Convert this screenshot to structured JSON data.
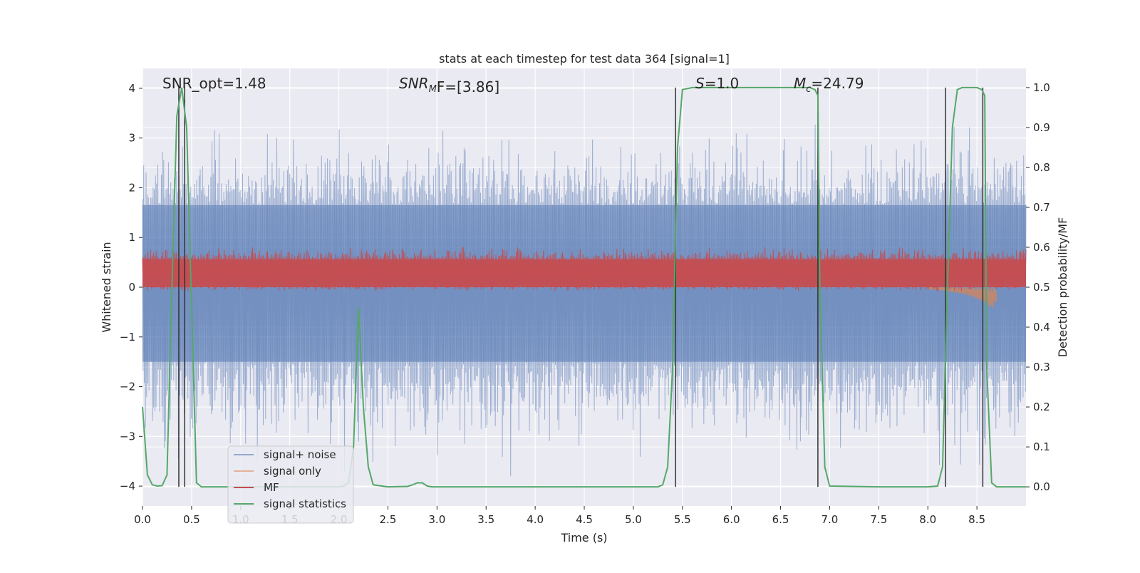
{
  "chart_data": {
    "type": "line",
    "title": "stats at each timestep for test data 364 [signal=1]",
    "xlabel": "Time (s)",
    "ylabel": "Whitened strain",
    "ylabel_right": "Detection probability/MF",
    "xlim": [
      0.0,
      9.0
    ],
    "ylim": [
      -4.4,
      4.4
    ],
    "ylim_right": [
      -0.048,
      1.048
    ],
    "x_ticks": [
      0.0,
      0.5,
      1.0,
      1.5,
      2.0,
      2.5,
      3.0,
      3.5,
      4.0,
      4.5,
      5.0,
      5.5,
      6.0,
      6.5,
      7.0,
      7.5,
      8.0,
      8.5
    ],
    "x_tick_labels": [
      "0.0",
      "0.5",
      "1.0",
      "1.5",
      "2.0",
      "2.5",
      "3.0",
      "3.5",
      "4.0",
      "4.5",
      "5.0",
      "5.5",
      "6.0",
      "6.5",
      "7.0",
      "7.5",
      "8.0",
      "8.5"
    ],
    "y_ticks": [
      -4,
      -3,
      -2,
      -1,
      0,
      1,
      2,
      3,
      4
    ],
    "y_tick_labels": [
      "−4",
      "−3",
      "−2",
      "−1",
      "0",
      "1",
      "2",
      "3",
      "4"
    ],
    "y_ticks_right": [
      0.0,
      0.1,
      0.2,
      0.3,
      0.4,
      0.5,
      0.6,
      0.7,
      0.8,
      0.9,
      1.0
    ],
    "y_tick_labels_right": [
      "0.0",
      "0.1",
      "0.2",
      "0.3",
      "0.4",
      "0.5",
      "0.6",
      "0.7",
      "0.8",
      "0.9",
      "1.0"
    ],
    "grid": true,
    "annotations": {
      "snr_opt": "SNR_opt=1.48",
      "snr_mf_prefix": "SNR",
      "snr_mf_sub": "M",
      "snr_mf_suffix": "F=[3.86]",
      "s_prefix": "S",
      "s_suffix": "=1.0",
      "mc_prefix": "M",
      "mc_sub": "c",
      "mc_suffix": "=24.79"
    },
    "legend": {
      "placement": "lower-left",
      "entries": [
        "signal+ noise",
        "signal only",
        "MF",
        "signal statistics"
      ]
    },
    "colors": {
      "noise": "#4c72b0",
      "signal": "#dd8452",
      "mf": "#c44e52",
      "stats": "#55a868",
      "background": "#eaeaf2",
      "grid": "#ffffff",
      "vlines": "#333333"
    },
    "series": [
      {
        "name": "signal+ noise",
        "axis": "left",
        "kind": "noise-band",
        "envelope_typical": [
          -1.5,
          1.65
        ],
        "envelope_peak": [
          -3.8,
          3.3
        ]
      },
      {
        "name": "signal only",
        "axis": "left",
        "kind": "chirp",
        "x": [
          8.0,
          8.2,
          8.4,
          8.5,
          8.6,
          8.65,
          8.7
        ],
        "amplitude": [
          0.02,
          0.05,
          0.1,
          0.15,
          0.22,
          0.28,
          0.18
        ]
      },
      {
        "name": "MF",
        "axis": "right",
        "kind": "noise-band",
        "baseline": 0.5,
        "envelope_typical": [
          0.5,
          0.57
        ],
        "envelope_peak": [
          0.49,
          0.6
        ]
      },
      {
        "name": "signal statistics",
        "axis": "right",
        "kind": "line",
        "x": [
          0.0,
          0.05,
          0.1,
          0.15,
          0.2,
          0.25,
          0.3,
          0.35,
          0.4,
          0.45,
          0.5,
          0.55,
          0.6,
          0.7,
          1.0,
          1.5,
          2.0,
          2.05,
          2.1,
          2.15,
          2.2,
          2.25,
          2.3,
          2.35,
          2.5,
          2.7,
          2.75,
          2.8,
          2.85,
          2.9,
          2.95,
          3.0,
          4.0,
          5.0,
          5.25,
          5.3,
          5.35,
          5.4,
          5.45,
          5.5,
          5.6,
          6.0,
          6.5,
          6.8,
          6.85,
          6.88,
          6.9,
          6.95,
          7.0,
          7.5,
          8.0,
          8.1,
          8.15,
          8.2,
          8.25,
          8.3,
          8.35,
          8.4,
          8.5,
          8.55,
          8.58,
          8.6,
          8.65,
          8.7,
          8.8,
          9.0
        ],
        "y": [
          0.2,
          0.03,
          0.005,
          0.002,
          0.003,
          0.03,
          0.5,
          0.93,
          1.0,
          0.9,
          0.45,
          0.01,
          0.0,
          0.0,
          0.0,
          0.0,
          0.0,
          0.002,
          0.01,
          0.1,
          0.45,
          0.2,
          0.05,
          0.005,
          0.0,
          0.001,
          0.005,
          0.01,
          0.01,
          0.002,
          0.0,
          0.0,
          0.0,
          0.0,
          0.0,
          0.005,
          0.05,
          0.3,
          0.85,
          0.995,
          1.0,
          1.0,
          1.0,
          1.0,
          0.995,
          0.98,
          0.5,
          0.05,
          0.002,
          0.0,
          0.0,
          0.002,
          0.05,
          0.5,
          0.9,
          0.995,
          1.0,
          1.0,
          1.0,
          0.995,
          0.98,
          0.3,
          0.01,
          0.0,
          0.0,
          0.0
        ]
      }
    ],
    "vlines_x": [
      0.37,
      0.43,
      5.43,
      6.88,
      8.18,
      8.56
    ]
  }
}
